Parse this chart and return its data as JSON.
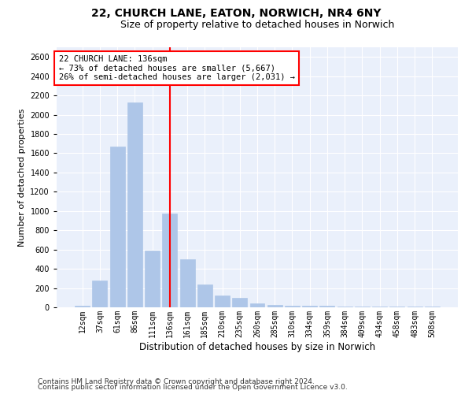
{
  "title_line1": "22, CHURCH LANE, EATON, NORWICH, NR4 6NY",
  "title_line2": "Size of property relative to detached houses in Norwich",
  "xlabel": "Distribution of detached houses by size in Norwich",
  "ylabel": "Number of detached properties",
  "categories": [
    "12sqm",
    "37sqm",
    "61sqm",
    "86sqm",
    "111sqm",
    "136sqm",
    "161sqm",
    "185sqm",
    "210sqm",
    "235sqm",
    "260sqm",
    "285sqm",
    "310sqm",
    "334sqm",
    "359sqm",
    "384sqm",
    "409sqm",
    "434sqm",
    "458sqm",
    "483sqm",
    "508sqm"
  ],
  "values": [
    20,
    280,
    1670,
    2130,
    590,
    970,
    500,
    240,
    120,
    95,
    45,
    25,
    15,
    20,
    15,
    5,
    10,
    5,
    5,
    5,
    10
  ],
  "bar_color": "#aec6e8",
  "bar_edge_color": "#aec6e8",
  "vline_x_index": 5,
  "vline_color": "red",
  "annotation_text": "22 CHURCH LANE: 136sqm\n← 73% of detached houses are smaller (5,667)\n26% of semi-detached houses are larger (2,031) →",
  "annotation_box_facecolor": "white",
  "annotation_box_edgecolor": "red",
  "plot_background": "#eaf0fb",
  "grid_color": "white",
  "ylim": [
    0,
    2700
  ],
  "yticks": [
    0,
    200,
    400,
    600,
    800,
    1000,
    1200,
    1400,
    1600,
    1800,
    2000,
    2200,
    2400,
    2600
  ],
  "footer_line1": "Contains HM Land Registry data © Crown copyright and database right 2024.",
  "footer_line2": "Contains public sector information licensed under the Open Government Licence v3.0.",
  "title_fontsize": 10,
  "subtitle_fontsize": 9,
  "xlabel_fontsize": 8.5,
  "ylabel_fontsize": 8,
  "tick_fontsize": 7,
  "annotation_fontsize": 7.5,
  "footer_fontsize": 6.5
}
